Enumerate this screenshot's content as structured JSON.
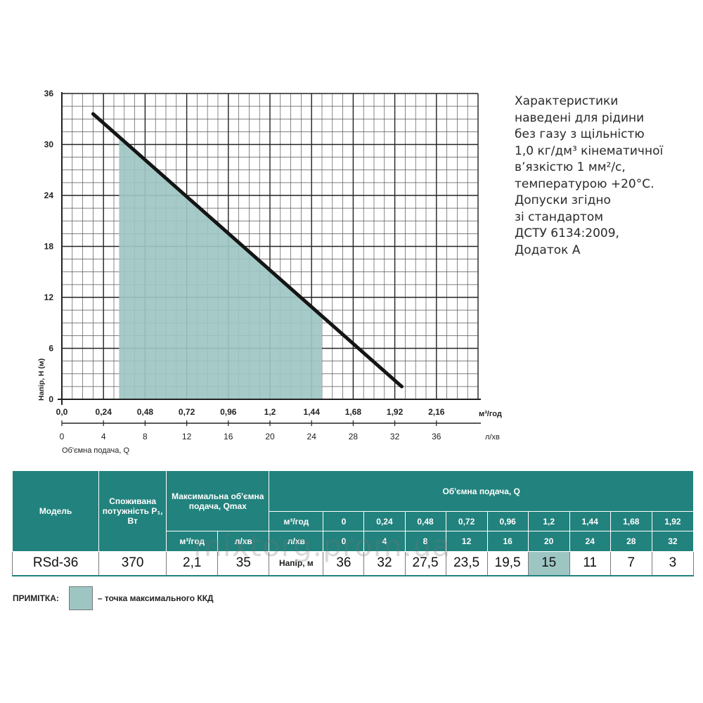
{
  "chart_data": {
    "type": "line",
    "series": [
      {
        "name": "RSd-36",
        "x": [
          0.0,
          0.24,
          0.48,
          0.72,
          0.96,
          1.2,
          1.44,
          1.68,
          1.92
        ],
        "y": [
          36,
          32,
          27.5,
          23.5,
          19.5,
          15,
          11,
          7,
          3
        ],
        "line_x": [
          0.18,
          1.96
        ],
        "line_y": [
          33.6,
          1.5
        ]
      }
    ],
    "efficiency_region": {
      "x_from": 0.33,
      "x_to": 1.5,
      "color": "#9dc6c3"
    },
    "x_ticks": [
      "0,0",
      "0,24",
      "0,48",
      "0,72",
      "0,96",
      "1,2",
      "1,44",
      "1,68",
      "1,92",
      "2,16"
    ],
    "x_tick_values": [
      0,
      0.24,
      0.48,
      0.72,
      0.96,
      1.2,
      1.44,
      1.68,
      1.92,
      2.16
    ],
    "x_unit": "м³/год",
    "x2_ticks": [
      "0",
      "4",
      "8",
      "12",
      "16",
      "20",
      "24",
      "28",
      "32",
      "36"
    ],
    "x2_unit": "л/хв",
    "x2_label": "Об'ємна подача, Q",
    "y_ticks": [
      "0",
      "6",
      "12",
      "18",
      "24",
      "30",
      "36"
    ],
    "y_tick_values": [
      0,
      6,
      12,
      18,
      24,
      30,
      36
    ],
    "ylabel": "Напір, H (м)",
    "xlim": [
      0,
      2.4
    ],
    "ylim": [
      0,
      36
    ],
    "grid": true
  },
  "colors": {
    "teal": "#22827d",
    "highlight": "#9dc6c3",
    "curve": "#151515"
  },
  "side_note": [
    "Характеристики",
    "наведені для рідини",
    "без газу з щільністю",
    "1,0 кг/дм³ кінематичної",
    "в’язкістю 1 мм²/с,",
    "температурою +20°С.",
    "Допуски згідно",
    "зі стандартом",
    "ДСТУ 6134:2009,",
    "Додаток А"
  ],
  "table": {
    "h_model": "Модель",
    "h_power": "Споживана потужність P₁, Вт",
    "h_qmax": "Максимальна об'ємна подача, Qmax",
    "h_qmax_m3": "м³/год",
    "h_qmax_lmin": "л/хв",
    "h_flow": "Об'ємна подача, Q",
    "row_m3_label": "м³/год",
    "row_m3": [
      "0",
      "0,24",
      "0,48",
      "0,72",
      "0,96",
      "1,2",
      "1,44",
      "1,68",
      "1,92"
    ],
    "row_lmin_label": "л/хв",
    "row_lmin": [
      "0",
      "4",
      "8",
      "12",
      "16",
      "20",
      "24",
      "28",
      "32"
    ],
    "model": "RSd-36",
    "power": "370",
    "qmax_m3": "2,1",
    "qmax_lmin": "35",
    "head_label": "Напір, м",
    "heads": [
      "36",
      "32",
      "27,5",
      "23,5",
      "19,5",
      "15",
      "11",
      "7",
      "3"
    ]
  },
  "note": {
    "label": "ПРИМІТКА:",
    "text": "– точка максимального ККД"
  },
  "watermark": "mixtorg.prom.ua"
}
